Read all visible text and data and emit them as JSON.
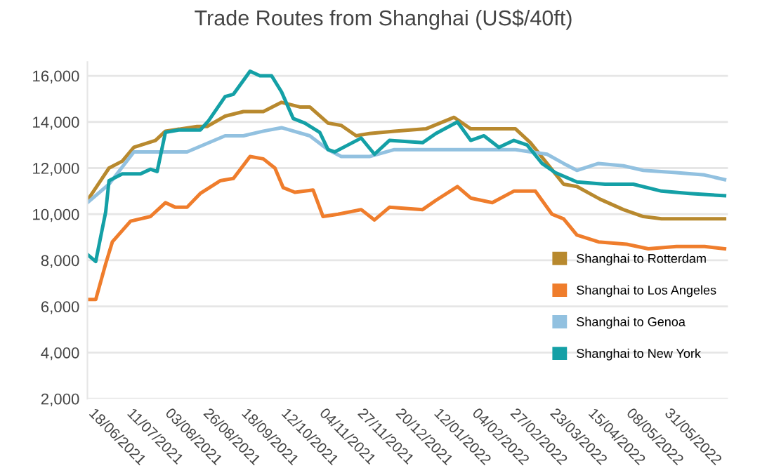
{
  "chart_data": {
    "type": "line",
    "title": "Trade Routes from Shanghai (US$/40ft)",
    "xlim": [
      "2021-06-13",
      "2022-07-04"
    ],
    "xticks": [
      {
        "value": "2021-06-18",
        "label": "18/06/2021"
      },
      {
        "value": "2021-07-11",
        "label": "11/07/2021"
      },
      {
        "value": "2021-08-03",
        "label": "03/08/2021"
      },
      {
        "value": "2021-08-26",
        "label": "26/08/2021"
      },
      {
        "value": "2021-09-18",
        "label": "18/09/2021"
      },
      {
        "value": "2021-10-12",
        "label": "12/10/2021"
      },
      {
        "value": "2021-11-04",
        "label": "04/11/2021"
      },
      {
        "value": "2021-11-27",
        "label": "27/11/2021"
      },
      {
        "value": "2021-12-20",
        "label": "20/12/2021"
      },
      {
        "value": "2022-01-12",
        "label": "12/01/2022"
      },
      {
        "value": "2022-02-04",
        "label": "04/02/2022"
      },
      {
        "value": "2022-02-27",
        "label": "27/02/2022"
      },
      {
        "value": "2022-03-23",
        "label": "23/03/2022"
      },
      {
        "value": "2022-04-15",
        "label": "15/04/2022"
      },
      {
        "value": "2022-05-08",
        "label": "08/05/2022"
      },
      {
        "value": "2022-05-31",
        "label": "31/05/2022"
      }
    ],
    "ylim": [
      2000,
      16600
    ],
    "yticks": [
      {
        "value": 2000,
        "label": "2,000"
      },
      {
        "value": 4000,
        "label": "4,000"
      },
      {
        "value": 6000,
        "label": "6,000"
      },
      {
        "value": 8000,
        "label": "8,000"
      },
      {
        "value": 10000,
        "label": "10,000"
      },
      {
        "value": 12000,
        "label": "12,000"
      },
      {
        "value": 14000,
        "label": "14,000"
      },
      {
        "value": 16000,
        "label": "16,000"
      }
    ],
    "grid": "y",
    "legend": "bottom right",
    "marker": "none",
    "line_style": "solid",
    "series": [
      {
        "name": "Shanghai to Rotterdam",
        "color": "#b8892e",
        "x": [
          "2021-06-13",
          "2021-06-26",
          "2021-07-04",
          "2021-07-11",
          "2021-07-24",
          "2021-07-30",
          "2021-08-18",
          "2021-08-24",
          "2021-09-04",
          "2021-09-15",
          "2021-09-27",
          "2021-10-08",
          "2021-10-19",
          "2021-10-25",
          "2021-11-05",
          "2021-11-13",
          "2021-11-22",
          "2021-11-30",
          "2021-12-15",
          "2022-01-03",
          "2022-01-20",
          "2022-01-30",
          "2022-02-26",
          "2022-03-07",
          "2022-03-17",
          "2022-03-27",
          "2022-04-04",
          "2022-04-18",
          "2022-05-02",
          "2022-05-14",
          "2022-05-25",
          "2022-06-11",
          "2022-07-02"
        ],
        "values": [
          10600,
          12000,
          12300,
          12900,
          13200,
          13600,
          13800,
          13800,
          14250,
          14450,
          14450,
          14850,
          14650,
          14650,
          13950,
          13850,
          13400,
          13500,
          13600,
          13700,
          14200,
          13700,
          13700,
          13100,
          12200,
          11300,
          11200,
          10650,
          10200,
          9900,
          9800,
          9800,
          9800
        ]
      },
      {
        "name": "Shanghai to Los Angeles",
        "color": "#ef7d2c",
        "x": [
          "2021-06-13",
          "2021-06-18",
          "2021-06-24",
          "2021-06-28",
          "2021-07-09",
          "2021-07-21",
          "2021-07-30",
          "2021-08-05",
          "2021-08-12",
          "2021-08-20",
          "2021-09-01",
          "2021-09-09",
          "2021-09-19",
          "2021-09-27",
          "2021-10-04",
          "2021-10-09",
          "2021-10-16",
          "2021-10-27",
          "2021-11-02",
          "2021-11-11",
          "2021-11-25",
          "2021-12-03",
          "2021-12-12",
          "2022-01-01",
          "2022-01-09",
          "2022-01-22",
          "2022-01-30",
          "2022-02-12",
          "2022-02-25",
          "2022-03-10",
          "2022-03-20",
          "2022-03-27",
          "2022-04-04",
          "2022-04-17",
          "2022-05-04",
          "2022-05-17",
          "2022-06-03",
          "2022-06-20",
          "2022-07-02"
        ],
        "values": [
          6300,
          6300,
          7850,
          8800,
          9700,
          9900,
          10500,
          10300,
          10300,
          10900,
          11450,
          11550,
          12500,
          12400,
          12000,
          11150,
          10950,
          11050,
          9900,
          10000,
          10200,
          9750,
          10300,
          10200,
          10600,
          11200,
          10700,
          10500,
          11000,
          11000,
          10000,
          9800,
          9100,
          8800,
          8700,
          8500,
          8600,
          8600,
          8500
        ]
      },
      {
        "name": "Shanghai to Genoa",
        "color": "#92c1e0",
        "x": [
          "2021-06-13",
          "2021-06-26",
          "2021-07-11",
          "2021-07-24",
          "2021-08-12",
          "2021-09-04",
          "2021-09-15",
          "2021-09-27",
          "2021-10-08",
          "2021-10-25",
          "2021-11-05",
          "2021-11-13",
          "2021-11-30",
          "2021-12-15",
          "2022-01-03",
          "2022-01-30",
          "2022-02-26",
          "2022-03-17",
          "2022-03-27",
          "2022-04-04",
          "2022-04-17",
          "2022-05-02",
          "2022-05-14",
          "2022-06-03",
          "2022-06-20",
          "2022-07-02"
        ],
        "values": [
          10500,
          11300,
          12700,
          12700,
          12700,
          13400,
          13400,
          13600,
          13750,
          13400,
          12800,
          12500,
          12500,
          12800,
          12800,
          12800,
          12800,
          12600,
          12200,
          11900,
          12200,
          12100,
          11900,
          11800,
          11700,
          11500
        ]
      },
      {
        "name": "Shanghai to New York",
        "color": "#14a0a6",
        "x": [
          "2021-06-13",
          "2021-06-18",
          "2021-06-24",
          "2021-06-26",
          "2021-07-04",
          "2021-07-15",
          "2021-07-21",
          "2021-07-25",
          "2021-07-30",
          "2021-08-07",
          "2021-08-20",
          "2021-08-25",
          "2021-09-04",
          "2021-09-09",
          "2021-09-19",
          "2021-09-25",
          "2021-10-02",
          "2021-10-08",
          "2021-10-15",
          "2021-10-22",
          "2021-10-31",
          "2021-11-05",
          "2021-11-09",
          "2021-11-17",
          "2021-11-25",
          "2021-12-03",
          "2021-12-12",
          "2022-01-01",
          "2022-01-09",
          "2022-01-22",
          "2022-01-30",
          "2022-02-07",
          "2022-02-16",
          "2022-02-25",
          "2022-03-05",
          "2022-03-14",
          "2022-03-22",
          "2022-04-04",
          "2022-04-21",
          "2022-05-08",
          "2022-05-25",
          "2022-06-11",
          "2022-07-02"
        ],
        "values": [
          8250,
          7950,
          10100,
          11450,
          11750,
          11750,
          11950,
          11850,
          13550,
          13650,
          13650,
          14050,
          15100,
          15200,
          16200,
          16000,
          16000,
          15300,
          14150,
          13950,
          13550,
          12800,
          12700,
          13000,
          13300,
          12600,
          13200,
          13100,
          13500,
          14000,
          13200,
          13400,
          12900,
          13200,
          13000,
          12200,
          11800,
          11400,
          11300,
          11300,
          11000,
          10900,
          10800
        ]
      }
    ]
  }
}
